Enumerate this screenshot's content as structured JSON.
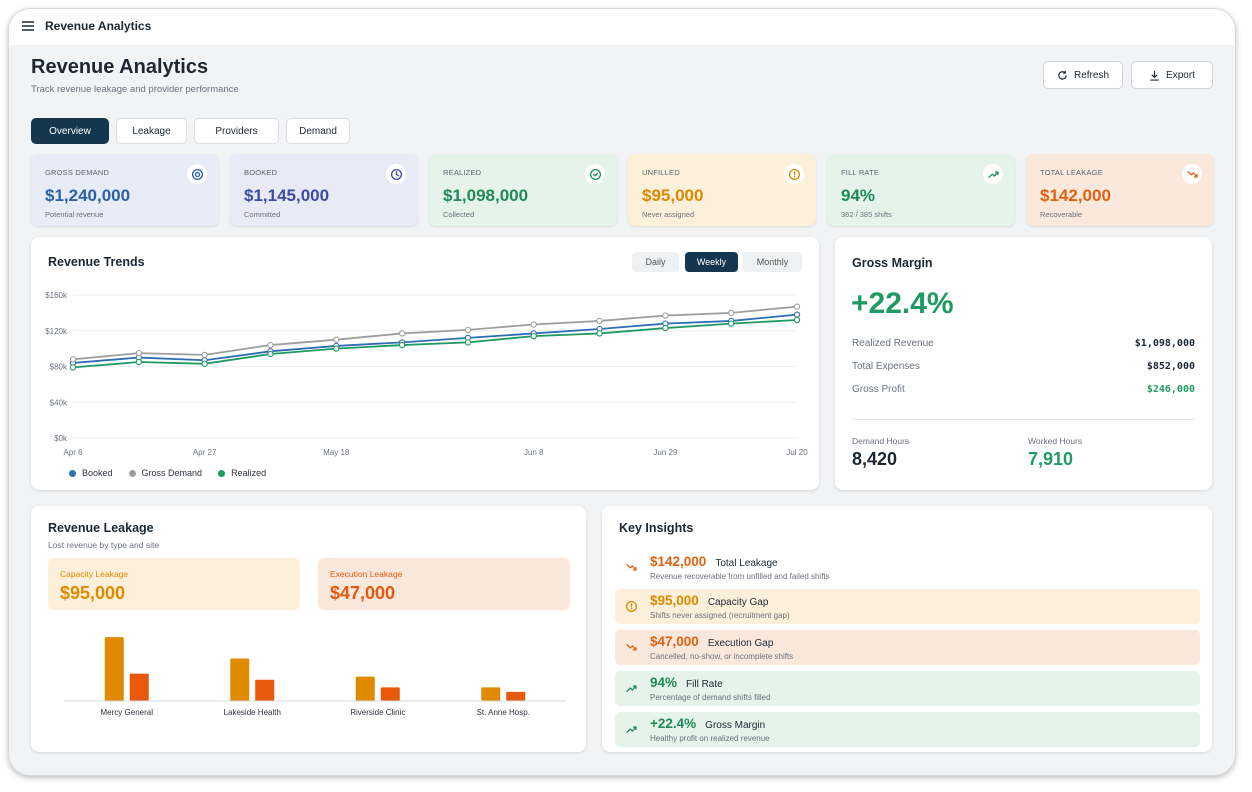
{
  "app_bar": {
    "title": "Revenue Analytics"
  },
  "header": {
    "title": "Revenue Analytics",
    "subtitle": "Track revenue leakage and provider performance",
    "actions": [
      "Refresh",
      "Export"
    ]
  },
  "tabs": [
    "Overview",
    "Leakage",
    "Providers",
    "Demand"
  ],
  "kpis": [
    {
      "label": "GROSS DEMAND",
      "value": "$1,240,000",
      "note": "Potential revenue",
      "icon": "target",
      "tone": "blue"
    },
    {
      "label": "BOOKED",
      "value": "$1,145,000",
      "note": "Committed",
      "icon": "clock",
      "tone": "indigo"
    },
    {
      "label": "REALIZED",
      "value": "$1,098,000",
      "note": "Collected",
      "icon": "check",
      "tone": "green"
    },
    {
      "label": "UNFILLED",
      "value": "$95,000",
      "note": "Never assigned",
      "icon": "alert",
      "tone": "yellow"
    },
    {
      "label": "FILL RATE",
      "value": "94%",
      "note": "362 / 385 shifts",
      "icon": "trend-up",
      "tone": "green"
    },
    {
      "label": "TOTAL LEAKAGE",
      "value": "$142,000",
      "note": "Recoverable",
      "icon": "trend-down",
      "tone": "orange"
    }
  ],
  "revenue_trends": {
    "title": "Revenue Trends",
    "ranges": [
      "Daily",
      "Weekly",
      "Monthly"
    ],
    "chart": {
      "type": "line",
      "categories": [
        "Apr 6",
        null,
        "Apr 27",
        null,
        "May 18",
        null,
        null,
        "Jun 8",
        null,
        "Jun 29",
        null,
        "Jul 20"
      ],
      "series": [
        {
          "name": "Booked",
          "color": "#2f6db5",
          "values": [
            84,
            90,
            87,
            97,
            103,
            107,
            112,
            117,
            122,
            128,
            131,
            138
          ]
        },
        {
          "name": "Gross Demand",
          "color": "#9e9e9e",
          "values": [
            88,
            95,
            93,
            104,
            110,
            117,
            121,
            127,
            131,
            137,
            140,
            147
          ]
        },
        {
          "name": "Realized",
          "color": "#1f9a62",
          "values": [
            79,
            85,
            83,
            94,
            100,
            104,
            107,
            114,
            117,
            123,
            128,
            132
          ]
        }
      ],
      "ylim": [
        0,
        160
      ],
      "yticks": [
        {
          "value": 0,
          "label": "$0k"
        },
        {
          "value": 40,
          "label": "$40k"
        },
        {
          "value": 80,
          "label": "$80k"
        },
        {
          "value": 120,
          "label": "$120k"
        },
        {
          "value": 160,
          "label": "$160k"
        }
      ],
      "grid": true,
      "legend": "bottom-left"
    }
  },
  "gross_margin": {
    "title": "Gross Margin",
    "value": "+22.4%",
    "rows": [
      {
        "label": "Realized Revenue",
        "value": "$1,098,000"
      },
      {
        "label": "Total Expenses",
        "value": "$852,000"
      },
      {
        "label": "Gross Profit",
        "value": "$246,000"
      }
    ],
    "hours": [
      {
        "label": "Demand Hours",
        "value": "8,420"
      },
      {
        "label": "Worked Hours",
        "value": "7,910"
      }
    ]
  },
  "revenue_leakage": {
    "title": "Revenue Leakage",
    "subtitle": "Lost revenue by type and site",
    "chart": {
      "type": "bar",
      "categories": [
        "Mercy General",
        "Lakeside Health",
        "Riverside Clinic",
        "St. Anne Hosp."
      ],
      "series": [
        {
          "name": "Capacity Leakage",
          "total": "$95,000",
          "color": "#e08a00",
          "values": [
            42,
            28,
            16,
            9
          ]
        },
        {
          "name": "Execution Leakage",
          "total": "$47,000",
          "color": "#e8590c",
          "values": [
            18,
            14,
            9,
            6
          ]
        }
      ],
      "ylim": [
        0,
        50
      ]
    }
  },
  "key_insights": {
    "title": "Key Insights",
    "items": [
      {
        "value": "$142,000",
        "title": "Total Leakage",
        "description": "Revenue recoverable from unfilled and failed shifts",
        "icon": "trend-down",
        "tone": "plain"
      },
      {
        "value": "$95,000",
        "title": "Capacity Gap",
        "description": "Shifts never assigned (recruitment gap)",
        "icon": "alert",
        "tone": "yellow"
      },
      {
        "value": "$47,000",
        "title": "Execution Gap",
        "description": "Cancelled, no-show, or incomplete shifts",
        "icon": "trend-down",
        "tone": "orange"
      },
      {
        "value": "94%",
        "title": "Fill Rate",
        "description": "Percentage of demand shifts filled",
        "icon": "trend-up",
        "tone": "green"
      },
      {
        "value": "+22.4%",
        "title": "Gross Margin",
        "description": "Healthy profit on realized revenue",
        "icon": "trend-up",
        "tone": "green"
      }
    ]
  }
}
